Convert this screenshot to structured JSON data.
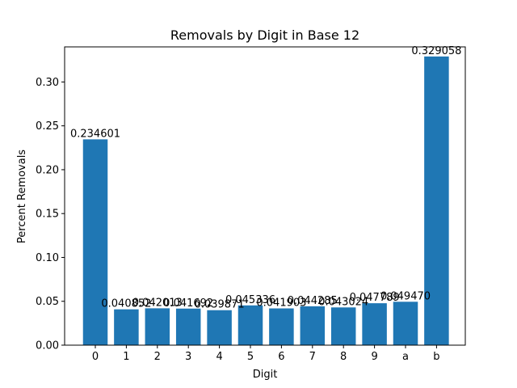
{
  "chart_data": {
    "type": "bar",
    "title": "Removals by Digit in Base 12",
    "xlabel": "Digit",
    "ylabel": "Percent Removals",
    "categories": [
      "0",
      "1",
      "2",
      "3",
      "4",
      "5",
      "6",
      "7",
      "8",
      "9",
      "a",
      "b"
    ],
    "values": [
      0.234601,
      0.040852,
      0.042013,
      0.041692,
      0.039871,
      0.045336,
      0.041903,
      0.044285,
      0.043024,
      0.047789,
      0.04947,
      0.329058
    ],
    "value_labels": [
      "0.234601",
      "0.040852",
      "0.042013",
      "0.041692",
      "0.039871",
      "0.045336",
      "0.041903",
      "0.044285",
      "0.043024",
      "0.047789",
      "0.049470",
      "0.329058"
    ],
    "ylim": [
      0,
      0.34
    ],
    "yticks": [
      "0.00",
      "0.05",
      "0.10",
      "0.15",
      "0.20",
      "0.25",
      "0.30"
    ],
    "bar_color": "#1f77b4",
    "grid": false,
    "legend": "none"
  }
}
